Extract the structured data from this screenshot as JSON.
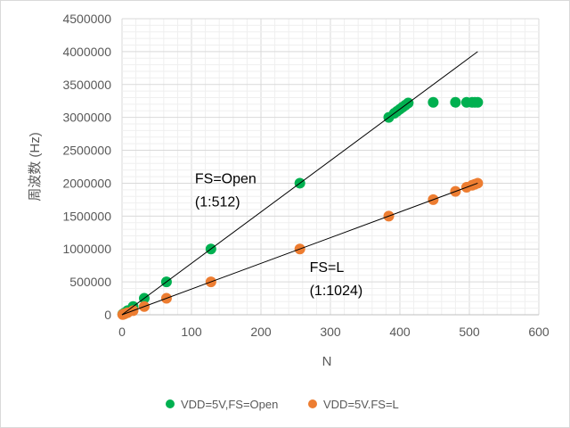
{
  "chart_data": {
    "type": "scatter",
    "title": "",
    "xlabel": "N",
    "ylabel": "周波数 (Hz)",
    "xlim": [
      0,
      600
    ],
    "ylim": [
      0,
      4500000
    ],
    "xticks": [
      "0",
      "100",
      "200",
      "300",
      "400",
      "500",
      "600"
    ],
    "yticks": [
      "0",
      "500000",
      "1000000",
      "1500000",
      "2000000",
      "2500000",
      "3000000",
      "3500000",
      "4000000",
      "4500000"
    ],
    "grid": true,
    "legend": "bottom",
    "series": [
      {
        "name": "VDD=5V,FS=Open",
        "color": "#00b050",
        "points": [
          [
            1,
            7812
          ],
          [
            2,
            15625
          ],
          [
            4,
            31250
          ],
          [
            8,
            62500
          ],
          [
            16,
            125000
          ],
          [
            32,
            250000
          ],
          [
            64,
            500000
          ],
          [
            128,
            1000000
          ],
          [
            256,
            2000000
          ],
          [
            384,
            3000000
          ],
          [
            392,
            3062500
          ],
          [
            396,
            3093750
          ],
          [
            400,
            3125000
          ],
          [
            404,
            3156250
          ],
          [
            408,
            3187500
          ],
          [
            412,
            3218750
          ],
          [
            448,
            3230000
          ],
          [
            480,
            3230000
          ],
          [
            496,
            3230000
          ],
          [
            504,
            3230000
          ],
          [
            508,
            3230000
          ],
          [
            512,
            3230000
          ]
        ],
        "trendline": [
          [
            0,
            0
          ],
          [
            512,
            4000000
          ]
        ]
      },
      {
        "name": "VDD=5V.FS=L",
        "color": "#ed7d31",
        "points": [
          [
            1,
            3906
          ],
          [
            2,
            7812
          ],
          [
            4,
            15625
          ],
          [
            8,
            31250
          ],
          [
            16,
            62500
          ],
          [
            32,
            125000
          ],
          [
            64,
            250000
          ],
          [
            128,
            500000
          ],
          [
            256,
            1000000
          ],
          [
            384,
            1500000
          ],
          [
            448,
            1750000
          ],
          [
            480,
            1875000
          ],
          [
            496,
            1937500
          ],
          [
            504,
            1968750
          ],
          [
            508,
            1984375
          ],
          [
            512,
            2000000
          ]
        ],
        "trendline": [
          [
            0,
            0
          ],
          [
            512,
            2000000
          ]
        ]
      }
    ],
    "annotations": [
      {
        "lines": [
          "FS=Open",
          "(1:512)"
        ],
        "at": [
          105,
          2000000
        ]
      },
      {
        "lines": [
          "FS=L",
          "(1:1024)"
        ],
        "at": [
          270,
          650000
        ]
      }
    ]
  }
}
